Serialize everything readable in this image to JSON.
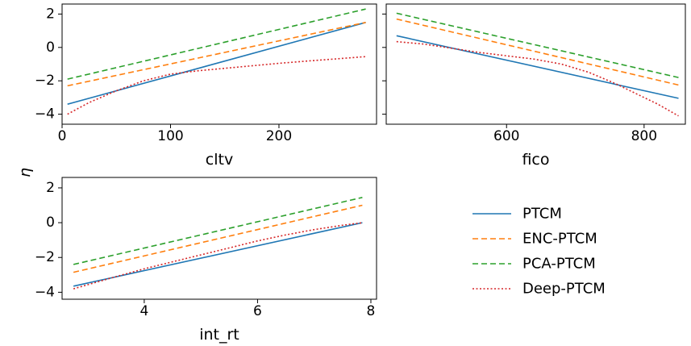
{
  "figure": {
    "ylabel": "η",
    "legend": {
      "placement": "lower-right",
      "entries": [
        "PTCM",
        "ENC-PTCM",
        "PCA-PTCM",
        "Deep-PTCM"
      ]
    }
  },
  "chart_data": [
    {
      "type": "line",
      "xlabel": "cltv",
      "xlim": [
        0,
        290
      ],
      "ylim": [
        -4.6,
        2.6
      ],
      "xticks": [
        0,
        100,
        200
      ],
      "yticks": [
        2,
        0,
        -2,
        -4
      ],
      "ytick_labels": [
        "2",
        "0",
        "−2",
        "−4"
      ],
      "series": [
        {
          "name": "PTCM",
          "color": "#1f77b4",
          "dash": "solid",
          "x": [
            5,
            280
          ],
          "y": [
            -3.4,
            1.5
          ]
        },
        {
          "name": "ENC-PTCM",
          "color": "#ff7f0e",
          "dash": "dashed",
          "x": [
            5,
            280
          ],
          "y": [
            -2.3,
            1.5
          ]
        },
        {
          "name": "PCA-PTCM",
          "color": "#2ca02c",
          "dash": "dashed",
          "x": [
            5,
            280
          ],
          "y": [
            -1.9,
            2.3
          ]
        },
        {
          "name": "Deep-PTCM",
          "color": "#d62728",
          "dash": "dotted",
          "x": [
            5,
            25,
            50,
            75,
            100,
            125,
            150,
            175,
            200,
            225,
            250,
            280
          ],
          "y": [
            -4.0,
            -3.3,
            -2.6,
            -2.0,
            -1.6,
            -1.4,
            -1.25,
            -1.1,
            -0.95,
            -0.82,
            -0.7,
            -0.55
          ]
        }
      ]
    },
    {
      "type": "line",
      "xlabel": "fico",
      "xlim": [
        425,
        860
      ],
      "ylim": [
        -4.6,
        2.6
      ],
      "xticks": [
        600,
        800
      ],
      "yticks": [
        2,
        0,
        -2,
        -4
      ],
      "ytick_labels": [
        "",
        "",
        "",
        ""
      ],
      "series": [
        {
          "name": "PTCM",
          "color": "#1f77b4",
          "dash": "solid",
          "x": [
            440,
            850
          ],
          "y": [
            0.7,
            -3.05
          ]
        },
        {
          "name": "ENC-PTCM",
          "color": "#ff7f0e",
          "dash": "dashed",
          "x": [
            440,
            850
          ],
          "y": [
            1.7,
            -2.25
          ]
        },
        {
          "name": "PCA-PTCM",
          "color": "#2ca02c",
          "dash": "dashed",
          "x": [
            440,
            850
          ],
          "y": [
            2.05,
            -1.8
          ]
        },
        {
          "name": "Deep-PTCM",
          "color": "#d62728",
          "dash": "dotted",
          "x": [
            440,
            480,
            520,
            560,
            600,
            640,
            680,
            720,
            760,
            790,
            820,
            850
          ],
          "y": [
            0.35,
            0.2,
            -0.05,
            -0.3,
            -0.5,
            -0.7,
            -1.0,
            -1.5,
            -2.2,
            -2.8,
            -3.4,
            -4.1
          ]
        }
      ]
    },
    {
      "type": "line",
      "xlabel": "int_rt",
      "xlim": [
        2.55,
        8.1
      ],
      "ylim": [
        -4.4,
        2.6
      ],
      "xticks": [
        4,
        6,
        8
      ],
      "yticks": [
        2,
        0,
        -2,
        -4
      ],
      "ytick_labels": [
        "2",
        "0",
        "−2",
        "−4"
      ],
      "series": [
        {
          "name": "PTCM",
          "color": "#1f77b4",
          "dash": "solid",
          "x": [
            2.75,
            7.85
          ],
          "y": [
            -3.65,
            0.0
          ]
        },
        {
          "name": "ENC-PTCM",
          "color": "#ff7f0e",
          "dash": "dashed",
          "x": [
            2.75,
            7.85
          ],
          "y": [
            -2.85,
            1.0
          ]
        },
        {
          "name": "PCA-PTCM",
          "color": "#2ca02c",
          "dash": "dashed",
          "x": [
            2.75,
            7.85
          ],
          "y": [
            -2.4,
            1.45
          ]
        },
        {
          "name": "Deep-PTCM",
          "color": "#d62728",
          "dash": "dotted",
          "x": [
            2.75,
            3.5,
            4.0,
            4.5,
            5.0,
            5.5,
            6.0,
            6.5,
            7.0,
            7.5,
            7.85
          ],
          "y": [
            -3.8,
            -3.1,
            -2.65,
            -2.25,
            -1.85,
            -1.45,
            -1.05,
            -0.7,
            -0.4,
            -0.15,
            0.0
          ]
        }
      ]
    }
  ]
}
